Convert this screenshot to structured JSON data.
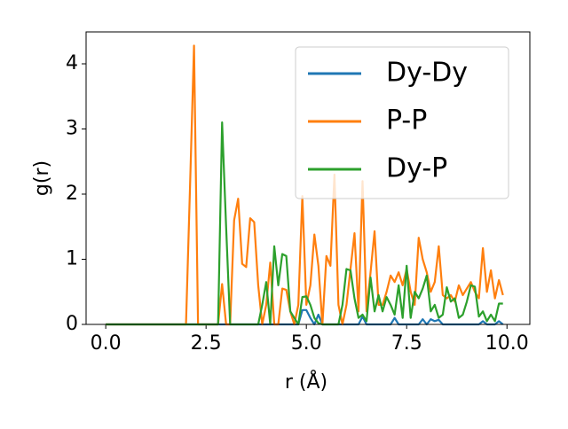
{
  "chart_data": {
    "type": "line",
    "x_label": "r (Å)",
    "y_label": "g(r)",
    "x": [
      0,
      0.1,
      0.2,
      0.3,
      0.4,
      0.5,
      0.6,
      0.7,
      0.8,
      0.9,
      1,
      1.1,
      1.2,
      1.3,
      1.4,
      1.5,
      1.6,
      1.7,
      1.8,
      1.9,
      2,
      2.1,
      2.2,
      2.3,
      2.4,
      2.5,
      2.6,
      2.7,
      2.8,
      2.9,
      3,
      3.1,
      3.2,
      3.3,
      3.4,
      3.5,
      3.6,
      3.7,
      3.8,
      3.9,
      4,
      4.1,
      4.2,
      4.3,
      4.4,
      4.5,
      4.6,
      4.7,
      4.8,
      4.9,
      5,
      5.1,
      5.2,
      5.3,
      5.4,
      5.5,
      5.6,
      5.7,
      5.8,
      5.9,
      6,
      6.1,
      6.2,
      6.3,
      6.4,
      6.5,
      6.6,
      6.7,
      6.8,
      6.9,
      7,
      7.1,
      7.2,
      7.3,
      7.4,
      7.5,
      7.6,
      7.7,
      7.8,
      7.9,
      8,
      8.1,
      8.2,
      8.3,
      8.4,
      8.5,
      8.6,
      8.7,
      8.8,
      8.9,
      9,
      9.1,
      9.2,
      9.3,
      9.4,
      9.5,
      9.6,
      9.7,
      9.8,
      9.9
    ],
    "series": [
      {
        "name": "Dy-Dy",
        "color": "#1f77b4",
        "values": [
          0,
          0,
          0,
          0,
          0,
          0,
          0,
          0,
          0,
          0,
          0,
          0,
          0,
          0,
          0,
          0,
          0,
          0,
          0,
          0,
          0,
          0,
          0,
          0,
          0,
          0,
          0,
          0,
          0,
          0,
          0,
          0,
          0,
          0,
          0,
          0,
          0,
          0,
          0,
          0,
          0,
          0,
          0,
          0,
          0,
          0,
          0,
          0,
          0,
          0.22,
          0.22,
          0.1,
          0,
          0.15,
          0,
          0,
          0,
          0,
          0,
          0,
          0,
          0,
          0,
          0,
          0.12,
          0,
          0,
          0,
          0,
          0,
          0,
          0,
          0.1,
          0,
          0,
          0,
          0,
          0,
          0,
          0.08,
          0,
          0.08,
          0.05,
          0.07,
          0,
          0,
          0,
          0,
          0,
          0,
          0,
          0,
          0,
          0,
          0.05,
          0,
          0,
          0,
          0.05,
          0
        ]
      },
      {
        "name": "P-P",
        "color": "#ff7f0e",
        "values": [
          0,
          0,
          0,
          0,
          0,
          0,
          0,
          0,
          0,
          0,
          0,
          0,
          0,
          0,
          0,
          0,
          0,
          0,
          0,
          0,
          0,
          2.1,
          4.28,
          0,
          0,
          0,
          0,
          0,
          0,
          0.62,
          0,
          0,
          1.6,
          1.93,
          0.93,
          0.88,
          1.63,
          1.57,
          0.6,
          0,
          0.3,
          0.95,
          0,
          0,
          0.55,
          0.53,
          0.2,
          0,
          0.3,
          1.97,
          0.3,
          0.6,
          1.38,
          0.9,
          0,
          1.05,
          0.9,
          2.3,
          0.3,
          0,
          0.3,
          0.85,
          1.4,
          0.2,
          2.2,
          0.2,
          0.8,
          1.43,
          0.3,
          0.3,
          0.5,
          0.75,
          0.65,
          0.8,
          0.6,
          0.85,
          0.5,
          0.3,
          1.33,
          1.0,
          0.8,
          0.5,
          0.65,
          1.2,
          0.45,
          0.4,
          0.45,
          0.35,
          0.6,
          0.45,
          0.55,
          0.65,
          0.5,
          0.4,
          1.17,
          0.5,
          0.83,
          0.4,
          0.68,
          0.45
        ]
      },
      {
        "name": "Dy-P",
        "color": "#2ca02c",
        "values": [
          0,
          0,
          0,
          0,
          0,
          0,
          0,
          0,
          0,
          0,
          0,
          0,
          0,
          0,
          0,
          0,
          0,
          0,
          0,
          0,
          0,
          0,
          0,
          0,
          0,
          0,
          0,
          0,
          0,
          3.1,
          1.5,
          0,
          0,
          0,
          0,
          0,
          0,
          0,
          0,
          0.3,
          0.65,
          0,
          1.2,
          0.6,
          1.08,
          1.05,
          0.2,
          0.1,
          0,
          0.42,
          0.43,
          0.3,
          0.1,
          0.02,
          0,
          0,
          0,
          0,
          0,
          0.3,
          0.85,
          0.83,
          0.4,
          0.1,
          0.15,
          0.05,
          0.72,
          0.2,
          0.45,
          0.2,
          0.42,
          0.3,
          0.15,
          0.6,
          0.1,
          0.9,
          0.1,
          0.5,
          0.4,
          0.55,
          0.75,
          0.2,
          0.3,
          0.1,
          0.15,
          0.57,
          0.35,
          0.4,
          0.1,
          0.15,
          0.35,
          0.6,
          0.58,
          0.12,
          0.2,
          0.05,
          0.15,
          0.05,
          0.32,
          0.32
        ]
      }
    ],
    "xlim": [
      -0.49,
      10.57
    ],
    "ylim": [
      0,
      4.49
    ],
    "xticks": [
      {
        "value": 0,
        "label": "0.0"
      },
      {
        "value": 2.5,
        "label": "2.5"
      },
      {
        "value": 5,
        "label": "5.0"
      },
      {
        "value": 7.5,
        "label": "7.5"
      },
      {
        "value": 10,
        "label": "10.0"
      }
    ],
    "yticks": [
      0,
      1,
      2,
      3,
      4
    ],
    "grid": false,
    "legend": "upper right"
  }
}
